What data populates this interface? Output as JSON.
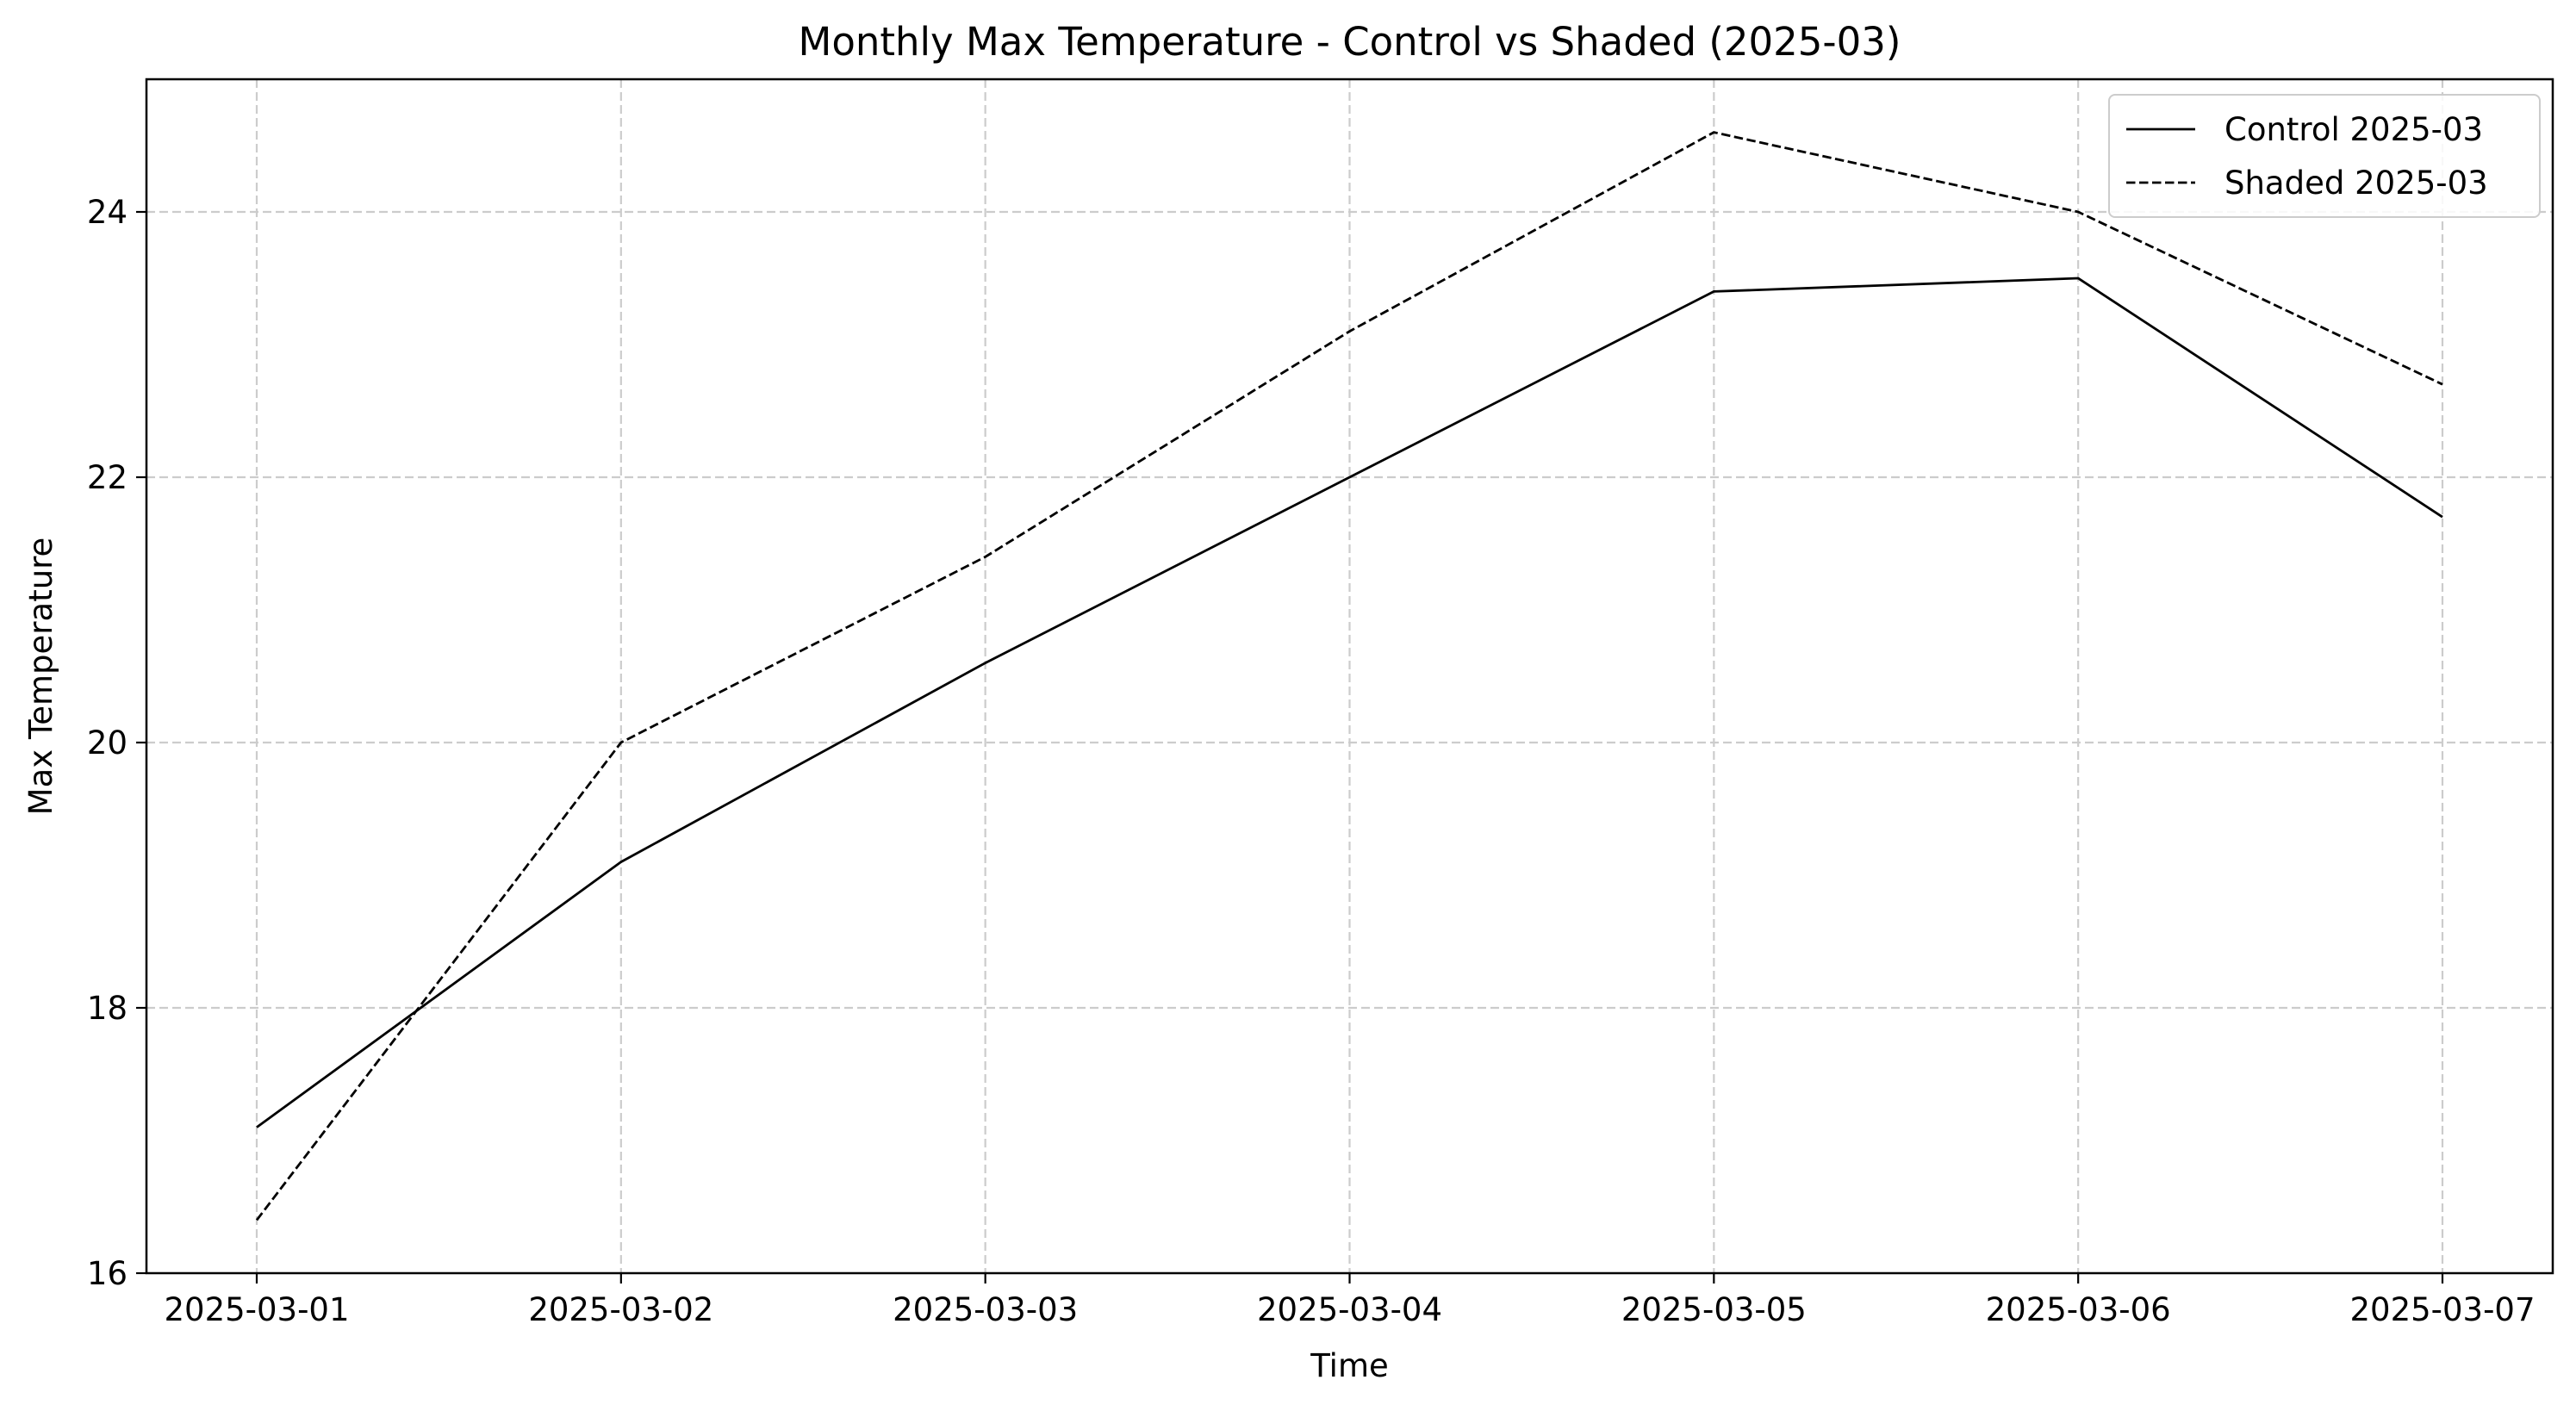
{
  "chart_data": {
    "type": "line",
    "title": "Monthly Max Temperature - Control vs Shaded (2025-03)",
    "xlabel": "Time",
    "ylabel": "Max Temperature",
    "x": [
      "2025-03-01",
      "2025-03-02",
      "2025-03-03",
      "2025-03-04",
      "2025-03-05",
      "2025-03-06",
      "2025-03-07"
    ],
    "xticks": [
      "2025-03-01",
      "2025-03-02",
      "2025-03-03",
      "2025-03-04",
      "2025-03-05",
      "2025-03-06",
      "2025-03-07"
    ],
    "yticks": [
      16,
      18,
      20,
      22,
      24
    ],
    "ylim": [
      16,
      25
    ],
    "grid": true,
    "legend_position": "top-right",
    "series": [
      {
        "name": "Control 2025-03",
        "style": "solid",
        "color": "#000000",
        "values": [
          17.1,
          19.1,
          20.6,
          22.0,
          23.4,
          23.5,
          21.7
        ]
      },
      {
        "name": "Shaded 2025-03",
        "style": "dashed",
        "color": "#000000",
        "values": [
          16.4,
          20.0,
          21.4,
          23.1,
          24.6,
          24.0,
          22.7
        ]
      }
    ]
  }
}
